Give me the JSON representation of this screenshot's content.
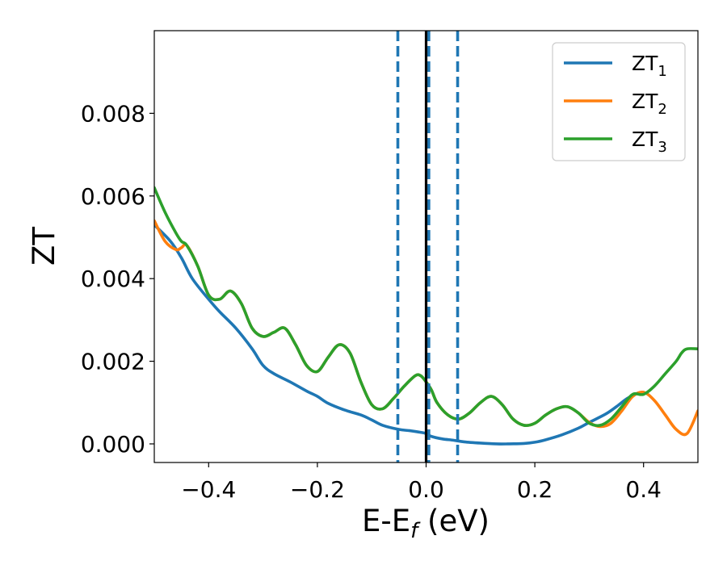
{
  "chart_data": {
    "type": "line",
    "title": "",
    "xlabel": {
      "main": "E-E",
      "sub": "f",
      "suffix": " (eV)"
    },
    "ylabel": "ZT",
    "xlim": [
      -0.5,
      0.5
    ],
    "ylim": [
      -0.00045,
      0.01
    ],
    "x_ticks": [
      -0.4,
      -0.2,
      0.0,
      0.2,
      0.4
    ],
    "x_tick_labels": [
      "−0.4",
      "−0.2",
      "0.0",
      "0.2",
      "0.4"
    ],
    "y_ticks": [
      0.0,
      0.002,
      0.004,
      0.006,
      0.008
    ],
    "y_tick_labels": [
      "0.000",
      "0.002",
      "0.004",
      "0.006",
      "0.008"
    ],
    "grid": false,
    "legend_position": "top-right",
    "colors": {
      "ZT1": "#1f77b4",
      "ZT2": "#ff7f0e",
      "ZT3": "#2ca02c",
      "fermi": "#000000",
      "vlines": "#1f77b4"
    },
    "vertical_lines": [
      {
        "x": 0.0,
        "style": "solid",
        "color": "#000000"
      },
      {
        "x": -0.052,
        "style": "dashed",
        "color": "#1f77b4"
      },
      {
        "x": 0.005,
        "style": "dashed",
        "color": "#1f77b4"
      },
      {
        "x": 0.058,
        "style": "dashed",
        "color": "#1f77b4"
      }
    ],
    "series": [
      {
        "name": "ZT",
        "sub": "1",
        "color": "#1f77b4",
        "x": [
          -0.5,
          -0.47,
          -0.45,
          -0.43,
          -0.4,
          -0.38,
          -0.35,
          -0.32,
          -0.3,
          -0.28,
          -0.25,
          -0.22,
          -0.2,
          -0.18,
          -0.15,
          -0.12,
          -0.1,
          -0.08,
          -0.05,
          -0.03,
          -0.01,
          0.0,
          0.01,
          0.03,
          0.05,
          0.07,
          0.1,
          0.13,
          0.15,
          0.18,
          0.2,
          0.22,
          0.25,
          0.28,
          0.3,
          0.33,
          0.35,
          0.37,
          0.39,
          0.4
        ],
        "y": [
          0.0053,
          0.0049,
          0.0045,
          0.004,
          0.0035,
          0.0032,
          0.0028,
          0.0023,
          0.0019,
          0.0017,
          0.0015,
          0.00128,
          0.00115,
          0.00098,
          0.00082,
          0.0007,
          0.00058,
          0.00045,
          0.00035,
          0.00032,
          0.00028,
          0.00025,
          0.00018,
          0.00012,
          9e-05,
          5e-05,
          2e-05,
          0.0,
          0.0,
          1e-05,
          4e-05,
          0.0001,
          0.00022,
          0.00038,
          0.00052,
          0.00072,
          0.0009,
          0.0011,
          0.00123,
          0.00125
        ]
      },
      {
        "name": "ZT",
        "sub": "2",
        "color": "#ff7f0e",
        "x": [
          -0.5,
          -0.48,
          -0.46,
          -0.45,
          -0.44,
          -0.42,
          -0.4,
          -0.38,
          -0.36,
          -0.34,
          -0.32,
          -0.3,
          -0.28,
          -0.26,
          -0.24,
          -0.22,
          -0.2,
          -0.18,
          -0.16,
          -0.14,
          -0.12,
          -0.1,
          -0.08,
          -0.06,
          -0.04,
          -0.02,
          -0.01,
          0.0,
          0.01,
          0.02,
          0.04,
          0.06,
          0.08,
          0.1,
          0.12,
          0.14,
          0.16,
          0.18,
          0.2,
          0.22,
          0.24,
          0.26,
          0.28,
          0.3,
          0.32,
          0.34,
          0.36,
          0.38,
          0.4,
          0.42,
          0.44,
          0.46,
          0.48,
          0.5
        ],
        "y": [
          0.0054,
          0.0049,
          0.0047,
          0.00475,
          0.0048,
          0.0043,
          0.0036,
          0.0035,
          0.0037,
          0.0034,
          0.0028,
          0.0026,
          0.0027,
          0.0028,
          0.0024,
          0.0019,
          0.00175,
          0.0021,
          0.0024,
          0.0022,
          0.0015,
          0.00095,
          0.00085,
          0.0011,
          0.0014,
          0.00165,
          0.00165,
          0.0015,
          0.0013,
          0.001,
          0.0007,
          0.0006,
          0.00075,
          0.001,
          0.00115,
          0.00095,
          0.0006,
          0.00045,
          0.0005,
          0.0007,
          0.00085,
          0.0009,
          0.00075,
          0.00052,
          0.00042,
          0.0005,
          0.0008,
          0.00115,
          0.00125,
          0.00105,
          0.0007,
          0.00035,
          0.00025,
          0.0008
        ]
      },
      {
        "name": "ZT",
        "sub": "3",
        "color": "#2ca02c",
        "x": [
          -0.5,
          -0.48,
          -0.46,
          -0.45,
          -0.44,
          -0.42,
          -0.4,
          -0.38,
          -0.36,
          -0.34,
          -0.32,
          -0.3,
          -0.28,
          -0.26,
          -0.24,
          -0.22,
          -0.2,
          -0.18,
          -0.16,
          -0.14,
          -0.12,
          -0.1,
          -0.08,
          -0.06,
          -0.04,
          -0.02,
          -0.01,
          0.0,
          0.01,
          0.02,
          0.04,
          0.06,
          0.08,
          0.1,
          0.12,
          0.14,
          0.16,
          0.18,
          0.2,
          0.22,
          0.24,
          0.26,
          0.28,
          0.3,
          0.32,
          0.34,
          0.36,
          0.38,
          0.4,
          0.42,
          0.44,
          0.46,
          0.47,
          0.48,
          0.5
        ],
        "y": [
          0.0062,
          0.0056,
          0.0051,
          0.0049,
          0.0048,
          0.0043,
          0.0036,
          0.0035,
          0.0037,
          0.0034,
          0.0028,
          0.0026,
          0.0027,
          0.0028,
          0.0024,
          0.0019,
          0.00175,
          0.0021,
          0.0024,
          0.0022,
          0.0015,
          0.00095,
          0.00085,
          0.0011,
          0.0014,
          0.00165,
          0.00165,
          0.0015,
          0.0013,
          0.001,
          0.0007,
          0.0006,
          0.00075,
          0.001,
          0.00115,
          0.00095,
          0.0006,
          0.00045,
          0.0005,
          0.0007,
          0.00085,
          0.0009,
          0.00075,
          0.0005,
          0.00045,
          0.0006,
          0.0009,
          0.0012,
          0.0012,
          0.0014,
          0.0017,
          0.002,
          0.0022,
          0.0023,
          0.0023
        ]
      }
    ]
  }
}
